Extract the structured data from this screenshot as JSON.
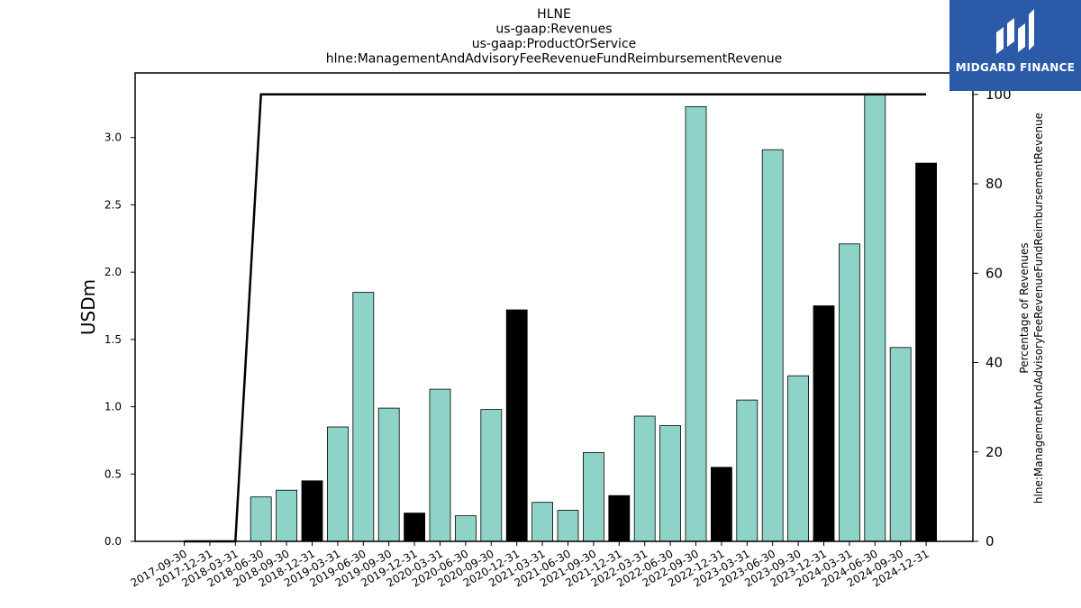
{
  "chart_data": {
    "type": "bar",
    "title_lines": [
      "HLNE",
      "us-gaap:Revenues",
      "us-gaap:ProductOrService",
      "hlne:ManagementAndAdvisoryFeeRevenueFundReimbursementRevenue"
    ],
    "ylabel": "USDm",
    "ylabel_right": [
      "Percentage of Revenues",
      "hlne:ManagementAndAdvisoryFeeRevenueFundReimbursementRevenue"
    ],
    "categories": [
      "2017-09-30",
      "2017-12-31",
      "2018-03-31",
      "2018-06-30",
      "2018-09-30",
      "2018-12-31",
      "2019-03-31",
      "2019-06-30",
      "2019-09-30",
      "2019-12-31",
      "2020-03-31",
      "2020-06-30",
      "2020-09-30",
      "2020-12-31",
      "2021-03-31",
      "2021-06-30",
      "2021-09-30",
      "2021-12-31",
      "2022-03-31",
      "2022-06-30",
      "2022-09-30",
      "2022-12-31",
      "2023-03-31",
      "2023-06-30",
      "2023-09-30",
      "2023-12-31",
      "2024-03-31",
      "2024-06-30",
      "2024-09-30",
      "2024-12-31"
    ],
    "values": [
      0.0,
      0.0,
      0.0,
      0.33,
      0.38,
      0.45,
      0.85,
      1.85,
      0.99,
      0.21,
      1.13,
      0.19,
      0.98,
      1.72,
      0.29,
      0.23,
      0.66,
      0.34,
      0.93,
      0.86,
      3.23,
      0.55,
      1.05,
      2.91,
      1.23,
      1.75,
      2.21,
      3.32,
      1.44,
      2.81
    ],
    "highlight": [
      false,
      false,
      false,
      false,
      false,
      true,
      false,
      false,
      false,
      true,
      false,
      false,
      false,
      true,
      false,
      false,
      false,
      true,
      false,
      false,
      false,
      true,
      false,
      false,
      false,
      true,
      false,
      false,
      false,
      true
    ],
    "line_values": [
      0,
      0,
      0,
      100,
      100,
      100,
      100,
      100,
      100,
      100,
      100,
      100,
      100,
      100,
      100,
      100,
      100,
      100,
      100,
      100,
      100,
      100,
      100,
      100,
      100,
      100,
      100,
      100,
      100,
      100
    ],
    "ylim": [
      0,
      3.48
    ],
    "yticks": [
      "0.0",
      "0.5",
      "1.0",
      "1.5",
      "2.0",
      "2.5",
      "3.0"
    ],
    "ylim_right": [
      0,
      104.8
    ],
    "yticks_right": [
      "0",
      "20",
      "40",
      "60",
      "80",
      "100"
    ],
    "colors": {
      "bar": "#8dd3c7",
      "bar_highlight": "#000000",
      "line": "#000000"
    }
  },
  "logo": {
    "text": "MIDGARD FINANCE"
  }
}
